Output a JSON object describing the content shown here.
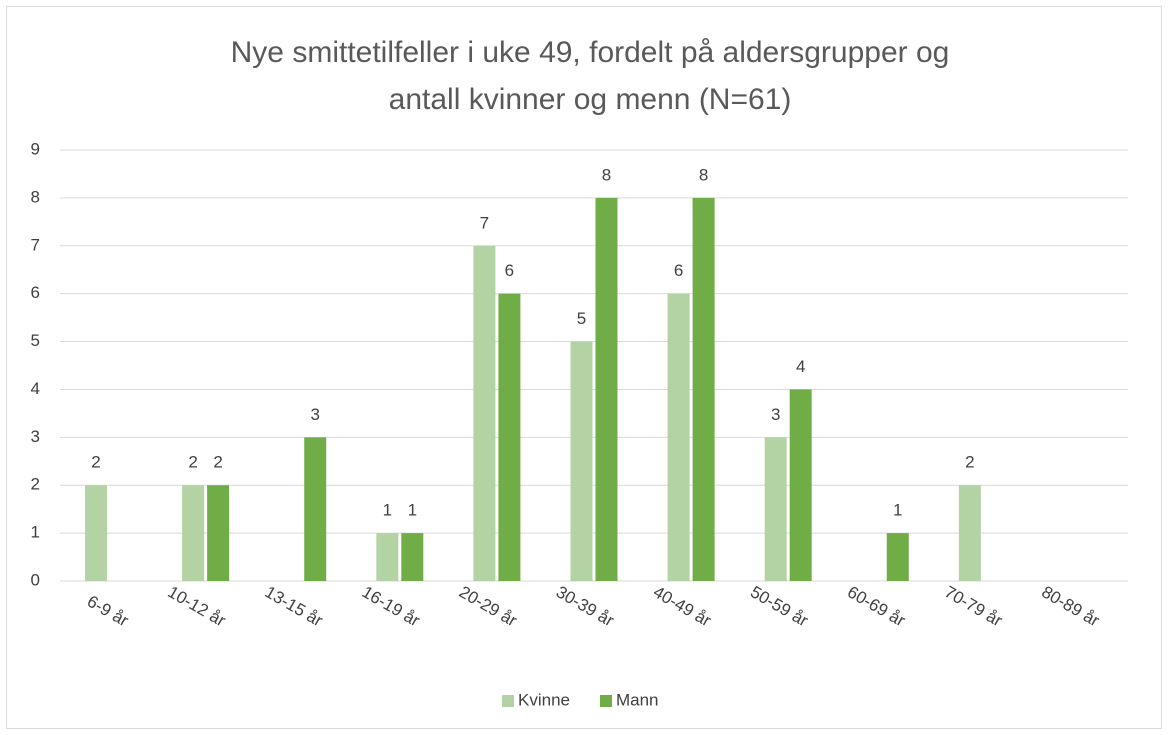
{
  "chart_data": {
    "type": "bar",
    "title": [
      "Nye smittetilfeller i uke 49, fordelt på aldersgrupper og",
      "antall kvinner og menn (N=61)"
    ],
    "categories": [
      "6-9 år",
      "10-12 år",
      "13-15 år",
      "16-19 år",
      "20-29 år",
      "30-39 år",
      "40-49 år",
      "50-59 år",
      "60-69 år",
      "70-79 år",
      "80-89 år"
    ],
    "series": [
      {
        "name": "Kvinne",
        "color": "#b4d3a4",
        "values": [
          2,
          2,
          null,
          1,
          7,
          5,
          6,
          3,
          null,
          2,
          null
        ]
      },
      {
        "name": "Mann",
        "color": "#70ad47",
        "values": [
          null,
          2,
          3,
          1,
          6,
          8,
          8,
          4,
          1,
          null,
          null
        ]
      }
    ],
    "ylim": [
      0,
      9
    ],
    "yticks": [
      0,
      1,
      2,
      3,
      4,
      5,
      6,
      7,
      8,
      9
    ],
    "grid": true,
    "legend": "bottom"
  }
}
